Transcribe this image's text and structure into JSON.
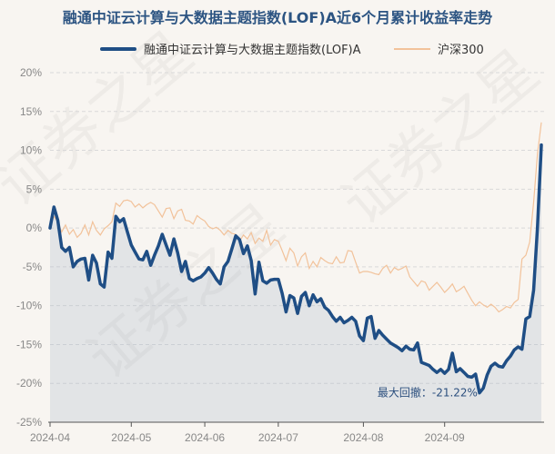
{
  "title": "融通中证云计算与大数据主题指数(LOF)A近6个月累计收益率走势",
  "colors": {
    "fund": "#1f4e85",
    "index": "#f2c29a",
    "area": "#a9b8c8",
    "grid": "#d9d9d9",
    "axis": "#555555"
  },
  "watermark": "证券之星",
  "chart_data": {
    "type": "line",
    "title": "融通中证云计算与大数据主题指数(LOF)A近6个月累计收益率走势",
    "xlabel": "",
    "ylabel": "",
    "ylim": [
      -25,
      20
    ],
    "yticks": [
      20,
      15,
      10,
      5,
      0,
      -5,
      -10,
      -15,
      -20,
      -25
    ],
    "ytick_labels": [
      "20%",
      "15%",
      "10%",
      "5%",
      "0%",
      "-5%",
      "-10%",
      "-15%",
      "-20%",
      "-25%"
    ],
    "xticks": [
      "2024-04",
      "2024-05",
      "2024-06",
      "2024-07",
      "2024-08",
      "2024-09"
    ],
    "xtick_index": [
      0,
      21,
      40,
      59,
      81,
      102
    ],
    "grid": true,
    "legend_position": "top",
    "series": [
      {
        "name": "融通中证云计算与大数据主题指数(LOF)A",
        "style": "thick-filled",
        "values": [
          0,
          2.7,
          1,
          -2.5,
          -3,
          -2.5,
          -5,
          -4.3,
          -4,
          -3.9,
          -6.7,
          -3.5,
          -4.5,
          -7.2,
          -7.6,
          -3.1,
          -3.9,
          1.5,
          0.8,
          1.2,
          -0.5,
          -2.2,
          -3.1,
          -4,
          -4.1,
          -3,
          -4.8,
          -3.5,
          -2.3,
          -0.8,
          -2.2,
          -3.5,
          -1.4,
          -3.2,
          -5.6,
          -4.3,
          -6.5,
          -6.8,
          -6.5,
          -6.3,
          -5.8,
          -5.1,
          -5.8,
          -6.6,
          -7.2,
          -5,
          -4.3,
          -2.7,
          -1,
          -1.5,
          -3.3,
          -2.3,
          -4.2,
          -8.5,
          -4.4,
          -6.8,
          -7.1,
          -6.7,
          -6.6,
          -6.6,
          -8.4,
          -10.8,
          -8.7,
          -9,
          -11,
          -8.8,
          -8.3,
          -10,
          -8.6,
          -9.5,
          -9.1,
          -10.2,
          -10.6,
          -11.4,
          -12,
          -11.5,
          -12.2,
          -11.9,
          -11.5,
          -12,
          -13.9,
          -14.5,
          -11.6,
          -11.4,
          -14.2,
          -13.2,
          -13.8,
          -14.3,
          -14.8,
          -15.1,
          -15.4,
          -15.8,
          -15.2,
          -15.6,
          -15.7,
          -14.8,
          -17.3,
          -17.5,
          -17.7,
          -18.2,
          -18.6,
          -18.2,
          -18.7,
          -18.2,
          -16.1,
          -18.5,
          -18.1,
          -18.6,
          -19.1,
          -19.2,
          -18.8,
          -21.22,
          -20.6,
          -18.9,
          -17.8,
          -17.4,
          -17.8,
          -17.9,
          -17.1,
          -16.5,
          -15.7,
          -15.3,
          -15.6,
          -11.7,
          -11.4,
          -8,
          0,
          10.7
        ]
      },
      {
        "name": "沪深300",
        "style": "thin",
        "values": [
          0.2,
          1.5,
          0.8,
          -0.5,
          0.4,
          -0.8,
          -0.2,
          -1.2,
          -0.7,
          0.4,
          -0.9,
          0.8,
          -0.3,
          -0.9,
          -0.1,
          0.3,
          0.8,
          3.2,
          2.8,
          3.5,
          3.6,
          3.4,
          2.7,
          3.1,
          2.6,
          3.0,
          3.3,
          3.0,
          2.2,
          1.4,
          2.5,
          2.6,
          1.2,
          2.2,
          2.4,
          1.0,
          0.9,
          0.5,
          1.6,
          1.2,
          0.9,
          0.2,
          -0.1,
          0.1,
          -0.3,
          -0.9,
          -0.3,
          -0.7,
          -0.8,
          -1.7,
          -0.9,
          -1.4,
          -0.6,
          -2.0,
          -1.3,
          -1.7,
          -0.3,
          -2.2,
          -1.5,
          -1.7,
          -2.9,
          -4.2,
          -2.6,
          -3.2,
          -4.9,
          -3.7,
          -3.2,
          -5.2,
          -4.3,
          -5.0,
          -3.8,
          -4.2,
          -4.5,
          -4.6,
          -3.7,
          -4.5,
          -4.4,
          -2.9,
          -3.0,
          -4.4,
          -5.8,
          -5.6,
          -5.6,
          -5.7,
          -5.9,
          -6.0,
          -5.2,
          -4.8,
          -5.8,
          -5.1,
          -5.4,
          -5.2,
          -4.9,
          -6.3,
          -6.9,
          -7.5,
          -6.8,
          -7.0,
          -8.0,
          -7.5,
          -7.0,
          -7.6,
          -8.3,
          -7.8,
          -7.2,
          -8.2,
          -7.9,
          -7.5,
          -8.4,
          -9.3,
          -10.0,
          -9.5,
          -9.9,
          -10.2,
          -9.8,
          -10.2,
          -10.8,
          -10.5,
          -10.1,
          -10.3,
          -9.6,
          -9.2,
          -4.0,
          -3.5,
          -1.8,
          3.3,
          9.5,
          13.6
        ]
      }
    ],
    "annotations": [
      {
        "label": "最大回撤：-21.22%",
        "series": 0,
        "index": 111
      }
    ]
  }
}
